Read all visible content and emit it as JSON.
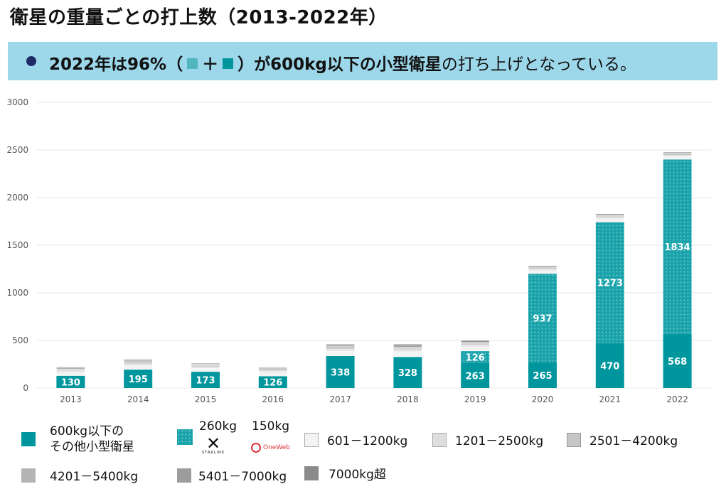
{
  "header": {
    "title": "衛星の重量ごとの打上数（2013-2022年）"
  },
  "banner": {
    "bold_start": "2022年は96%（",
    "plus": "＋",
    "bold_end": "）が600kg以下の小型衛星",
    "normal": "の打ち上げとなっている。"
  },
  "colors": {
    "small_other": "#00969e",
    "constellation": "#1aa3aa",
    "dot": "#7fd0d4"
  },
  "chart_data": {
    "type": "bar",
    "categories": [
      "2013",
      "2014",
      "2015",
      "2016",
      "2017",
      "2018",
      "2019",
      "2020",
      "2021",
      "2022"
    ],
    "ylim": [
      0,
      3000
    ],
    "yticks": [
      0,
      500,
      1000,
      1500,
      2000,
      2500,
      3000
    ],
    "grid": true,
    "series": [
      {
        "name": "600kg以下の\nその他小型衛星",
        "values": [
          130,
          195,
          173,
          126,
          338,
          328,
          263,
          265,
          470,
          568
        ],
        "labeled": true
      },
      {
        "name": "260kg 150kg",
        "values": [
          0,
          0,
          0,
          0,
          0,
          0,
          126,
          937,
          1273,
          1834
        ],
        "labeled": true
      },
      {
        "name": "601－1200kg",
        "values": [
          35,
          40,
          35,
          35,
          50,
          55,
          45,
          30,
          35,
          25
        ],
        "labeled": false
      },
      {
        "name": "1201－2500kg",
        "values": [
          15,
          18,
          15,
          15,
          20,
          20,
          18,
          12,
          12,
          10
        ],
        "labeled": false
      },
      {
        "name": "2501－4200kg",
        "values": [
          10,
          12,
          10,
          10,
          15,
          15,
          12,
          10,
          10,
          10
        ],
        "labeled": false
      },
      {
        "name": "4201－5400kg",
        "values": [
          10,
          12,
          10,
          10,
          12,
          12,
          10,
          10,
          10,
          10
        ],
        "labeled": false
      },
      {
        "name": "5401－7000kg",
        "values": [
          10,
          10,
          8,
          8,
          12,
          12,
          10,
          10,
          10,
          10
        ],
        "labeled": false
      },
      {
        "name": "7000kg超",
        "values": [
          10,
          13,
          9,
          11,
          13,
          18,
          16,
          10,
          10,
          10
        ],
        "labeled": false
      }
    ]
  },
  "legend": {
    "small_other": [
      "600kg以下の",
      "その他小型衛星"
    ],
    "w260": "260kg",
    "w150": "150kg",
    "starlink": "STARLINK",
    "oneweb": "OneWeb",
    "items": [
      "601－1200kg",
      "1201－2500kg",
      "2501－4200kg",
      "4201－5400kg",
      "5401－7000kg",
      "7000kg超"
    ],
    "item_colors": [
      "#f3f3f3",
      "#dedede",
      "#c6c6c6",
      "#b4b4b4",
      "#9c9c9c",
      "#8a8a8a"
    ]
  }
}
